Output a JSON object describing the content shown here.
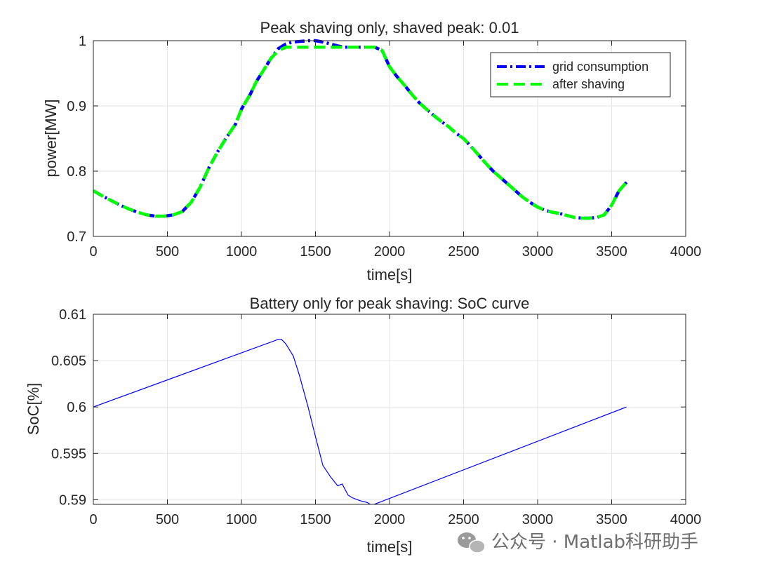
{
  "chart_data": [
    {
      "id": "top",
      "type": "line",
      "title": "Peak shaving only, shaved peak: 0.01",
      "xlabel": "time[s]",
      "ylabel": "power[MW]",
      "xlim": [
        0,
        4000
      ],
      "ylim": [
        0.7,
        1.0
      ],
      "xticks": [
        0,
        500,
        1000,
        1500,
        2000,
        2500,
        3000,
        3500,
        4000
      ],
      "yticks": [
        0.7,
        0.8,
        0.9,
        1.0
      ],
      "xtick_labels": [
        "0",
        "500",
        "1000",
        "1500",
        "2000",
        "2500",
        "3000",
        "3500",
        "4000"
      ],
      "ytick_labels": [
        "0.7",
        "0.8",
        "0.9",
        "1"
      ],
      "grid": true,
      "legend_position": "top-right",
      "series": [
        {
          "name": "grid consumption",
          "color": "#0000ff",
          "style": "dash-dot",
          "x": [
            0,
            60,
            120,
            180,
            240,
            300,
            360,
            420,
            480,
            540,
            600,
            660,
            720,
            780,
            840,
            900,
            960,
            1000,
            1060,
            1100,
            1150,
            1200,
            1250,
            1300,
            1350,
            1400,
            1450,
            1500,
            1550,
            1600,
            1650,
            1700,
            1750,
            1800,
            1850,
            1900,
            1950,
            2000,
            2050,
            2100,
            2150,
            2200,
            2250,
            2300,
            2350,
            2400,
            2450,
            2500,
            2550,
            2600,
            2650,
            2700,
            2750,
            2800,
            2850,
            2900,
            2950,
            3000,
            3050,
            3100,
            3150,
            3200,
            3250,
            3300,
            3350,
            3400,
            3450,
            3500,
            3550,
            3600
          ],
          "values": [
            0.77,
            0.762,
            0.755,
            0.748,
            0.742,
            0.737,
            0.733,
            0.731,
            0.731,
            0.733,
            0.738,
            0.752,
            0.775,
            0.805,
            0.83,
            0.852,
            0.872,
            0.895,
            0.918,
            0.937,
            0.955,
            0.973,
            0.988,
            0.995,
            0.998,
            0.999,
            1.0,
            1.0,
            0.998,
            0.995,
            0.992,
            0.99,
            0.99,
            0.99,
            0.99,
            0.99,
            0.985,
            0.96,
            0.945,
            0.932,
            0.918,
            0.905,
            0.895,
            0.885,
            0.876,
            0.868,
            0.858,
            0.85,
            0.838,
            0.825,
            0.812,
            0.8,
            0.79,
            0.78,
            0.77,
            0.76,
            0.752,
            0.745,
            0.74,
            0.737,
            0.735,
            0.732,
            0.729,
            0.728,
            0.728,
            0.729,
            0.733,
            0.748,
            0.77,
            0.783
          ]
        },
        {
          "name": "after shaving",
          "color": "#00ff00",
          "style": "dashed",
          "x": [
            0,
            60,
            120,
            180,
            240,
            300,
            360,
            420,
            480,
            540,
            600,
            660,
            720,
            780,
            840,
            900,
            960,
            1000,
            1060,
            1100,
            1150,
            1200,
            1250,
            1300,
            1350,
            1400,
            1450,
            1500,
            1550,
            1600,
            1650,
            1700,
            1750,
            1800,
            1850,
            1900,
            1950,
            2000,
            2050,
            2100,
            2150,
            2200,
            2250,
            2300,
            2350,
            2400,
            2450,
            2500,
            2550,
            2600,
            2650,
            2700,
            2750,
            2800,
            2850,
            2900,
            2950,
            3000,
            3050,
            3100,
            3150,
            3200,
            3250,
            3300,
            3350,
            3400,
            3450,
            3500,
            3550,
            3600
          ],
          "values": [
            0.77,
            0.762,
            0.755,
            0.748,
            0.742,
            0.737,
            0.733,
            0.731,
            0.731,
            0.733,
            0.738,
            0.752,
            0.775,
            0.805,
            0.83,
            0.852,
            0.872,
            0.895,
            0.918,
            0.937,
            0.955,
            0.973,
            0.985,
            0.99,
            0.99,
            0.99,
            0.99,
            0.99,
            0.99,
            0.99,
            0.99,
            0.99,
            0.99,
            0.99,
            0.99,
            0.99,
            0.985,
            0.96,
            0.945,
            0.932,
            0.918,
            0.905,
            0.895,
            0.885,
            0.876,
            0.868,
            0.858,
            0.85,
            0.838,
            0.825,
            0.812,
            0.8,
            0.79,
            0.78,
            0.77,
            0.76,
            0.752,
            0.745,
            0.74,
            0.737,
            0.735,
            0.732,
            0.729,
            0.728,
            0.728,
            0.729,
            0.733,
            0.748,
            0.77,
            0.783
          ]
        }
      ]
    },
    {
      "id": "bottom",
      "type": "line",
      "title": "Battery only for peak shaving: SoC curve",
      "xlabel": "time[s]",
      "ylabel": "SoC[%]",
      "xlim": [
        0,
        4000
      ],
      "ylim": [
        0.5895,
        0.61
      ],
      "xticks": [
        0,
        500,
        1000,
        1500,
        2000,
        2500,
        3000,
        3500,
        4000
      ],
      "yticks": [
        0.59,
        0.595,
        0.6,
        0.605,
        0.61
      ],
      "xtick_labels": [
        "0",
        "500",
        "1000",
        "1500",
        "2000",
        "2500",
        "3000",
        "3500",
        "4000"
      ],
      "ytick_labels": [
        "0.59",
        "0.595",
        "0.6",
        "0.605",
        "0.61"
      ],
      "grid": true,
      "series": [
        {
          "name": "SoC",
          "color": "#0000ff",
          "style": "solid",
          "x": [
            0,
            1250,
            1270,
            1300,
            1350,
            1390,
            1450,
            1500,
            1550,
            1600,
            1650,
            1680,
            1720,
            1750,
            1800,
            1850,
            1880,
            3600
          ],
          "values": [
            0.6,
            0.6073,
            0.6073,
            0.6068,
            0.6055,
            0.6035,
            0.6,
            0.5968,
            0.5937,
            0.5925,
            0.5915,
            0.5917,
            0.5905,
            0.5902,
            0.5899,
            0.5897,
            0.5894,
            0.6
          ]
        }
      ]
    }
  ],
  "watermark": {
    "text": "公众号 · Matlab科研助手",
    "icon": "wechat-icon"
  }
}
